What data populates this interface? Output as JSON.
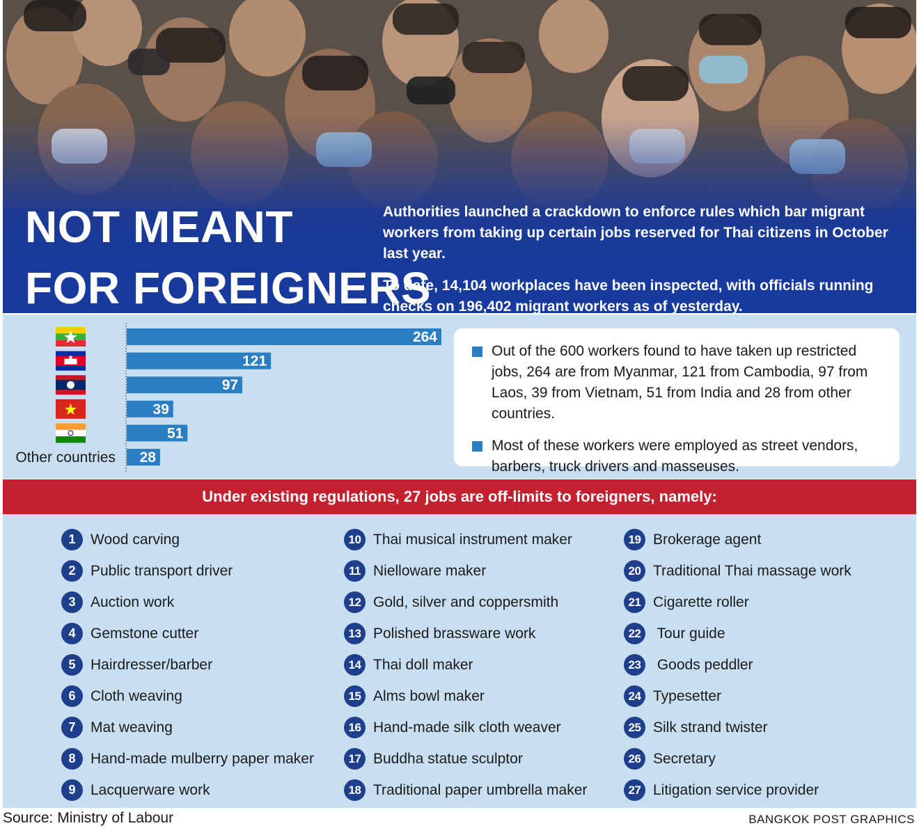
{
  "header": {
    "title_line1": "NOT MEANT",
    "title_line2": "FOR FOREIGNERS",
    "intro_p1": "Authorities launched a crackdown to enforce rules which bar migrant workers from taking up certain jobs reserved for Thai citizens in October last year.",
    "intro_p2": "To date, 14,104 workplaces have been inspected, with officials running checks on 196,402 migrant workers as of yesterday."
  },
  "chart_data": {
    "type": "bar",
    "orientation": "horizontal",
    "categories": [
      "Myanmar",
      "Cambodia",
      "Laos",
      "Vietnam",
      "India",
      "Other countries"
    ],
    "category_display": [
      {
        "kind": "flag",
        "icon": "myanmar-flag"
      },
      {
        "kind": "flag",
        "icon": "cambodia-flag"
      },
      {
        "kind": "flag",
        "icon": "laos-flag"
      },
      {
        "kind": "flag",
        "icon": "vietnam-flag"
      },
      {
        "kind": "flag",
        "icon": "india-flag"
      },
      {
        "kind": "text",
        "label": "Other countries"
      }
    ],
    "values": [
      264,
      121,
      97,
      39,
      51,
      28
    ],
    "xlim": [
      0,
      264
    ],
    "bar_color": "#2a7ec2",
    "data_labels": true
  },
  "info": {
    "items": [
      "Out of the 600 workers found to have taken up restricted jobs, 264 are from Myanmar, 121 from Cambodia, 97 from Laos, 39 from Vietnam, 51 from India and 28 from other countries.",
      "Most of these workers were employed as street vendors, barbers, truck drivers and masseuses."
    ]
  },
  "banner": "Under existing regulations, 27 jobs are off-limits to foreigners, namely:",
  "jobs": [
    {
      "n": "1",
      "label": "Wood carving"
    },
    {
      "n": "2",
      "label": "Public transport driver"
    },
    {
      "n": "3",
      "label": "Auction work"
    },
    {
      "n": "4",
      "label": "Gemstone cutter"
    },
    {
      "n": "5",
      "label": "Hairdresser/barber"
    },
    {
      "n": "6",
      "label": "Cloth weaving"
    },
    {
      "n": "7",
      "label": "Mat weaving"
    },
    {
      "n": "8",
      "label": "Hand-made mulberry paper maker"
    },
    {
      "n": "9",
      "label": "Lacquerware work"
    },
    {
      "n": "10",
      "label": "Thai musical instrument maker"
    },
    {
      "n": "11",
      "label": "Nielloware maker"
    },
    {
      "n": "12",
      "label": "Gold, silver and coppersmith"
    },
    {
      "n": "13",
      "label": "Polished brassware work"
    },
    {
      "n": "14",
      "label": "Thai doll maker"
    },
    {
      "n": "15",
      "label": "Alms bowl maker"
    },
    {
      "n": "16",
      "label": "Hand-made silk cloth weaver"
    },
    {
      "n": "17",
      "label": "Buddha statue sculptor"
    },
    {
      "n": "18",
      "label": "Traditional paper umbrella maker"
    },
    {
      "n": "19",
      "label": "Brokerage agent"
    },
    {
      "n": "20",
      "label": "Traditional Thai massage work"
    },
    {
      "n": "21",
      "label": "Cigarette roller"
    },
    {
      "n": "22",
      "label": " Tour guide"
    },
    {
      "n": "23",
      "label": " Goods peddler"
    },
    {
      "n": "24",
      "label": "Typesetter"
    },
    {
      "n": "25",
      "label": "Silk strand twister"
    },
    {
      "n": "26",
      "label": "Secretary"
    },
    {
      "n": "27",
      "label": "Litigation service provider"
    }
  ],
  "footer": {
    "source": "Source: Ministry of Labour",
    "credit": "BANGKOK POST GRAPHICS"
  },
  "colors": {
    "header_blue": "#163a9e",
    "chart_bg": "#c8dff1",
    "bar": "#2a7ec2",
    "banner_red": "#c32030",
    "number_circle": "#1d3f8c"
  }
}
